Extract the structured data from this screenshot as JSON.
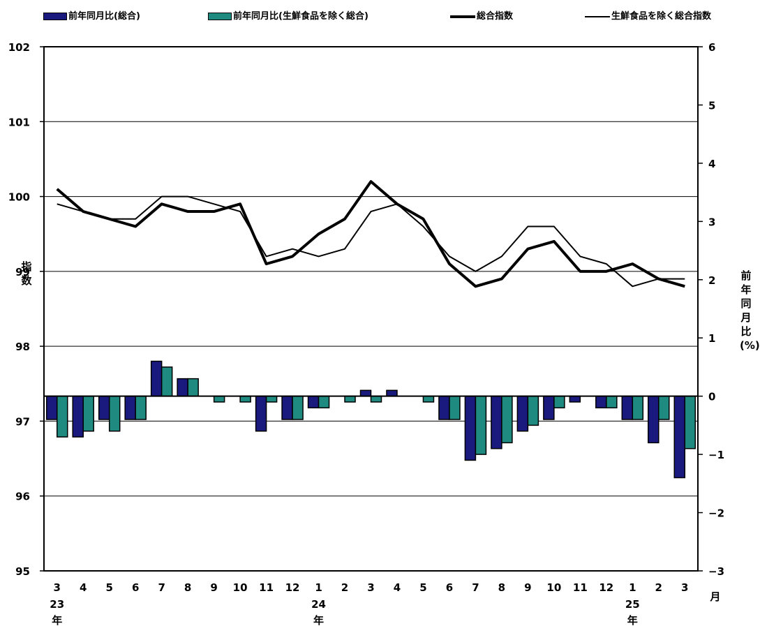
{
  "legend": [
    {
      "label": "前年同月比(総合)",
      "kind": "bar",
      "color": "#1a1a7e"
    },
    {
      "label": "前年同月比(生鮮食品を除く総合)",
      "kind": "bar",
      "color": "#1f8a80"
    },
    {
      "label": "総合指数",
      "kind": "thick-line",
      "color": "#000000"
    },
    {
      "label": "生鮮食品を除く総合指数",
      "kind": "thin-line",
      "color": "#000000"
    }
  ],
  "left_axis_label": "指数",
  "right_axis_label": "前年同月比(%)",
  "month_unit": "月",
  "year_marks": [
    {
      "index": 0,
      "year": "23",
      "unit": "年"
    },
    {
      "index": 10,
      "year": "24",
      "unit": "年"
    },
    {
      "index": 22,
      "year": "25",
      "unit": "年"
    }
  ],
  "chart_data": {
    "type": "bar+line",
    "categories": [
      "3",
      "4",
      "5",
      "6",
      "7",
      "8",
      "9",
      "10",
      "11",
      "12",
      "1",
      "2",
      "3",
      "4",
      "5",
      "6",
      "7",
      "8",
      "9",
      "10",
      "11",
      "12",
      "1",
      "2",
      "3"
    ],
    "left_axis": {
      "range": [
        95,
        102
      ],
      "ticks": [
        "95",
        "96",
        "97",
        "98",
        "99",
        "100",
        "101",
        "102"
      ]
    },
    "right_axis": {
      "range": [
        -3,
        6
      ],
      "ticks": [
        "−3",
        "−2",
        "−1",
        "0",
        "1",
        "2",
        "3",
        "4",
        "5",
        "6"
      ]
    },
    "gridlines_left": [
      96,
      97,
      98,
      99,
      100,
      101
    ],
    "series": [
      {
        "name": "前年同月比(総合)",
        "type": "bar",
        "axis": "right",
        "values": [
          -0.4,
          -0.7,
          -0.4,
          -0.4,
          0.6,
          0.3,
          0,
          0,
          -0.6,
          -0.4,
          -0.2,
          0,
          0.1,
          0.1,
          0,
          -0.4,
          -1.1,
          -0.9,
          -0.6,
          -0.4,
          -0.1,
          -0.2,
          -0.4,
          -0.8,
          -1.4
        ]
      },
      {
        "name": "前年同月比(生鮮食品を除く総合)",
        "type": "bar",
        "axis": "right",
        "values": [
          -0.7,
          -0.6,
          -0.6,
          -0.4,
          0.5,
          0.3,
          -0.1,
          -0.1,
          -0.1,
          -0.4,
          -0.2,
          -0.1,
          -0.1,
          0,
          -0.1,
          -0.4,
          -1.0,
          -0.8,
          -0.5,
          -0.2,
          0,
          -0.2,
          -0.4,
          -0.4,
          -0.9
        ]
      },
      {
        "name": "総合指数",
        "type": "line",
        "axis": "left",
        "values": [
          100.1,
          99.8,
          99.7,
          99.6,
          99.9,
          99.8,
          99.8,
          99.9,
          99.1,
          99.2,
          99.5,
          99.7,
          100.2,
          99.9,
          99.7,
          99.1,
          98.8,
          98.9,
          99.3,
          99.4,
          99.0,
          99.0,
          99.1,
          98.9,
          98.8
        ]
      },
      {
        "name": "生鮮食品を除く総合指数",
        "type": "line",
        "axis": "left",
        "values": [
          99.9,
          99.8,
          99.7,
          99.7,
          100.0,
          100.0,
          99.9,
          99.8,
          99.2,
          99.3,
          99.2,
          99.3,
          99.8,
          99.9,
          99.6,
          99.2,
          99.0,
          99.2,
          99.6,
          99.6,
          99.2,
          99.1,
          98.8,
          98.9,
          98.9
        ]
      }
    ]
  }
}
